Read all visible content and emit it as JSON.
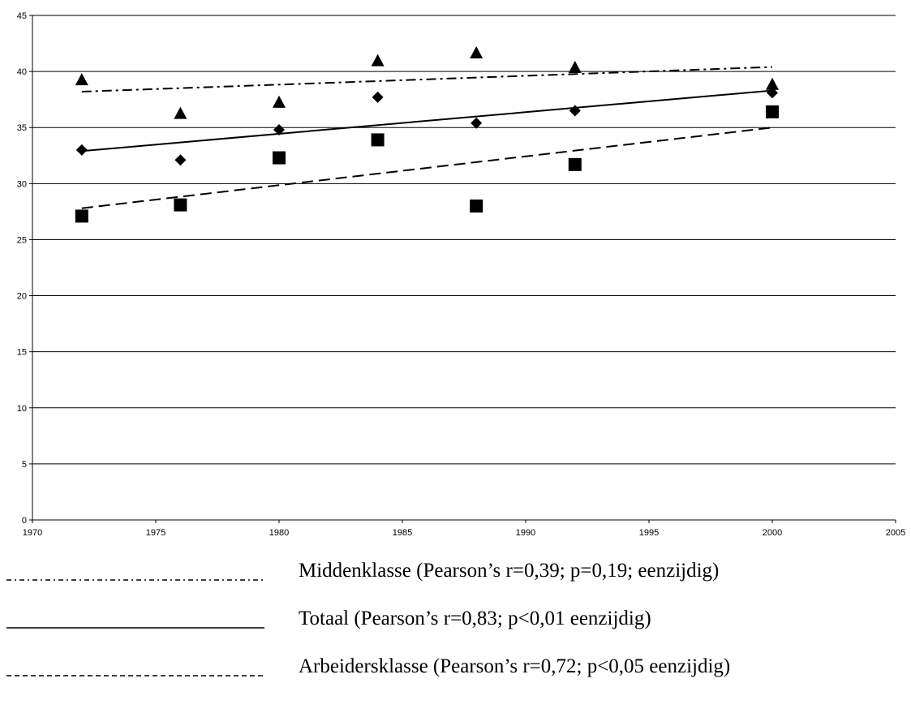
{
  "chart_data": {
    "type": "scatter",
    "title": "",
    "xlabel": "",
    "ylabel": "",
    "xlim": [
      1970,
      2005
    ],
    "ylim": [
      0,
      45
    ],
    "xticks": [
      1970,
      1975,
      1980,
      1985,
      1990,
      1995,
      2000,
      2005
    ],
    "yticks": [
      0,
      5,
      10,
      15,
      20,
      25,
      30,
      35,
      40,
      45
    ],
    "grid": "horizontal",
    "legend_position": "bottom",
    "series": [
      {
        "name": "Middenklasse (Pearson’s r=0,39; p=0,19; eenzijdig)",
        "marker": "triangle",
        "line_style": "dash-dot",
        "x": [
          1972,
          1976,
          1980,
          1984,
          1988,
          1992,
          2000
        ],
        "y": [
          39.2,
          36.2,
          37.2,
          40.9,
          41.6,
          40.3,
          38.8
        ],
        "trend": [
          [
            1972,
            38.2
          ],
          [
            2000,
            40.4
          ]
        ]
      },
      {
        "name": "Totaal (Pearson’s r=0,83; p<0,01 eenzijdig)",
        "marker": "diamond",
        "line_style": "solid",
        "x": [
          1972,
          1976,
          1980,
          1984,
          1988,
          1992,
          2000
        ],
        "y": [
          33.0,
          32.1,
          34.8,
          37.7,
          35.4,
          36.5,
          38.1
        ],
        "trend": [
          [
            1972,
            32.9
          ],
          [
            2000,
            38.3
          ]
        ]
      },
      {
        "name": "Arbeidersklasse (Pearson’s r=0,72; p<0,05 eenzijdig)",
        "marker": "square",
        "line_style": "dashed",
        "x": [
          1972,
          1976,
          1980,
          1984,
          1988,
          1992,
          2000
        ],
        "y": [
          27.1,
          28.1,
          32.3,
          33.9,
          28.0,
          31.7,
          36.4
        ],
        "trend": [
          [
            1972,
            27.8
          ],
          [
            2000,
            35.0
          ]
        ]
      }
    ]
  }
}
